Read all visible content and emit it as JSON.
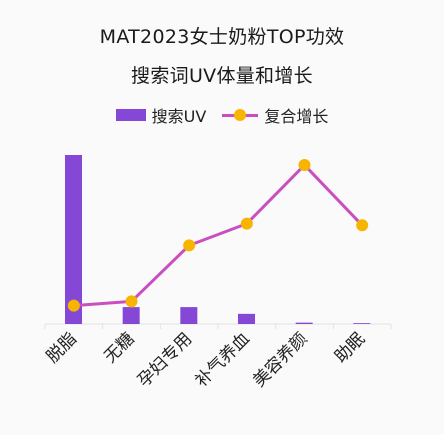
{
  "chart_data": {
    "type": "bar",
    "title_line1": "MAT2023女士奶粉TOP功效",
    "title_line2": "搜索词UV体量和增长",
    "categories": [
      "脱脂",
      "无糖",
      "孕妇专用",
      "补气养血",
      "美容养颜",
      "助眠"
    ],
    "series": [
      {
        "name": "搜索UV",
        "kind": "bar",
        "axis": "left",
        "color": "#8547d6",
        "values": [
          100,
          10,
          10,
          6,
          0.8,
          0.5
        ]
      },
      {
        "name": "复合增长",
        "kind": "line",
        "axis": "right",
        "color": "#c94fc0",
        "marker_color": "#f7b500",
        "values": [
          10,
          12.5,
          46,
          59,
          94,
          58
        ]
      }
    ],
    "ylim_left": [
      0,
      100
    ],
    "ylim_right": [
      -1,
      100
    ],
    "grid": false,
    "legend_position": "top-center"
  }
}
